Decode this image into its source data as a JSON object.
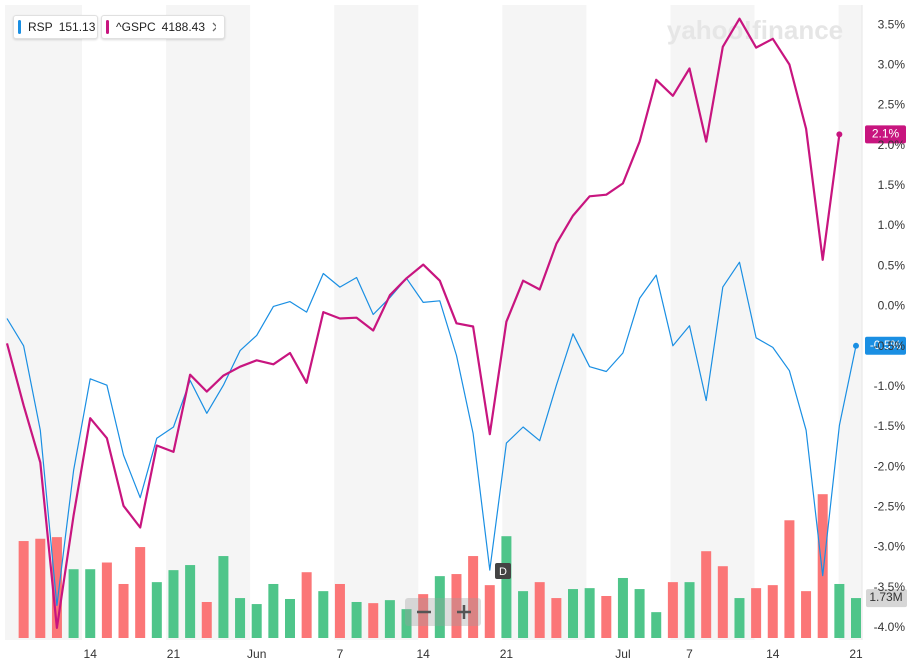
{
  "chart_data": {
    "type": "line",
    "watermark": "yahoo!finance",
    "event_marker": "D",
    "categories": [
      null,
      null,
      null,
      null,
      null,
      "14",
      null,
      null,
      null,
      null,
      "21",
      null,
      null,
      null,
      null,
      "Jun",
      null,
      null,
      null,
      null,
      "7",
      null,
      null,
      null,
      null,
      "14",
      null,
      null,
      null,
      null,
      "21",
      null,
      null,
      null,
      null,
      null,
      null,
      "Jul",
      null,
      null,
      null,
      "7",
      null,
      null,
      null,
      null,
      "14",
      null,
      null,
      null,
      null,
      "21"
    ],
    "ylim": [
      -4.15,
      3.75
    ],
    "yticks": [
      {
        "value": 3.5,
        "label": "3.5%"
      },
      {
        "value": 3.0,
        "label": "3.0%"
      },
      {
        "value": 2.5,
        "label": "2.5%"
      },
      {
        "value": 2.0,
        "label": "2.0%"
      },
      {
        "value": 1.5,
        "label": "1.5%"
      },
      {
        "value": 1.0,
        "label": "1.0%"
      },
      {
        "value": 0.5,
        "label": "0.5%"
      },
      {
        "value": 0.0,
        "label": "0.0%"
      },
      {
        "value": -0.5,
        "label": "-0.5%"
      },
      {
        "value": -1.0,
        "label": "-1.0%"
      },
      {
        "value": -1.5,
        "label": "-1.5%"
      },
      {
        "value": -2.0,
        "label": "-2.0%"
      },
      {
        "value": -2.5,
        "label": "-2.5%"
      },
      {
        "value": -3.0,
        "label": "-3.0%"
      },
      {
        "value": -3.5,
        "label": "-3.5%"
      },
      {
        "value": -4.0,
        "label": "-4.0%"
      }
    ],
    "grid": false,
    "series": [
      {
        "name": "RSP",
        "last_price": 151.13,
        "color": "#1a8fe3",
        "last_label": "-0.5%",
        "values": [
          -0.15,
          -0.49,
          -1.54,
          -3.72,
          -2.04,
          -0.9,
          -0.98,
          -1.85,
          -2.38,
          -1.64,
          -1.5,
          -0.92,
          -1.33,
          -0.98,
          -0.55,
          -0.36,
          0.0,
          0.06,
          -0.07,
          0.41,
          0.24,
          0.36,
          -0.1,
          0.11,
          0.35,
          0.05,
          0.07,
          -0.61,
          -1.58,
          -3.28,
          -1.7,
          -1.5,
          -1.67,
          -0.98,
          -0.34,
          -0.75,
          -0.81,
          -0.58,
          0.1,
          0.39,
          -0.49,
          -0.24,
          -1.17,
          0.24,
          0.55,
          -0.39,
          -0.51,
          -0.8,
          -1.54,
          -3.35,
          -1.48,
          -0.49
        ]
      },
      {
        "name": "^GSPC",
        "last_price": 4188.43,
        "color": "#c8157f",
        "last_label": "2.1%",
        "values": [
          -0.46,
          -1.23,
          -1.94,
          -4.0,
          -2.6,
          -1.39,
          -1.64,
          -2.48,
          -2.75,
          -1.73,
          -1.81,
          -0.85,
          -1.06,
          -0.86,
          -0.75,
          -0.67,
          -0.72,
          -0.58,
          -0.95,
          -0.07,
          -0.15,
          -0.14,
          -0.3,
          0.14,
          0.35,
          0.52,
          0.32,
          -0.21,
          -0.25,
          -1.59,
          -0.19,
          0.32,
          0.21,
          0.78,
          1.13,
          1.37,
          1.39,
          1.53,
          2.05,
          2.82,
          2.62,
          2.96,
          2.05,
          3.23,
          3.58,
          3.22,
          3.33,
          3.01,
          2.21,
          0.58,
          2.14,
          null
        ]
      }
    ],
    "volume": {
      "ylim": [
        0,
        12000000
      ],
      "last_label": "1.73M",
      "values": [
        null,
        4200000,
        4300000,
        4370000,
        2980000,
        2980000,
        3270000,
        2340000,
        3940000,
        2420000,
        2940000,
        3160000,
        1560000,
        3550000,
        1730000,
        1470000,
        2340000,
        1690000,
        2850000,
        2030000,
        2340000,
        1560000,
        1510000,
        1640000,
        1250000,
        1900000,
        2680000,
        2770000,
        3550000,
        2290000,
        4410000,
        2030000,
        2420000,
        1730000,
        2120000,
        2160000,
        1820000,
        2600000,
        2120000,
        1120000,
        2420000,
        2420000,
        3760000,
        3110000,
        1730000,
        2160000,
        2290000,
        5100000,
        2030000,
        6230000,
        2340000,
        1730000
      ],
      "colors": [
        null,
        "#fb7677",
        "#fb7677",
        "#fb7677",
        "#4fc58a",
        "#4fc58a",
        "#fb7677",
        "#fb7677",
        "#fb7677",
        "#4fc58a",
        "#4fc58a",
        "#4fc58a",
        "#fb7677",
        "#4fc58a",
        "#4fc58a",
        "#4fc58a",
        "#4fc58a",
        "#4fc58a",
        "#fb7677",
        "#4fc58a",
        "#fb7677",
        "#4fc58a",
        "#fb7677",
        "#4fc58a",
        "#4fc58a",
        "#fb7677",
        "#4fc58a",
        "#fb7677",
        "#fb7677",
        "#fb7677",
        "#4fc58a",
        "#4fc58a",
        "#fb7677",
        "#fb7677",
        "#4fc58a",
        "#4fc58a",
        "#fb7677",
        "#4fc58a",
        "#4fc58a",
        "#4fc58a",
        "#fb7677",
        "#4fc58a",
        "#fb7677",
        "#fb7677",
        "#4fc58a",
        "#fb7677",
        "#fb7677",
        "#fb7677",
        "#fb7677",
        "#fb7677",
        "#4fc58a",
        "#4fc58a"
      ]
    }
  }
}
